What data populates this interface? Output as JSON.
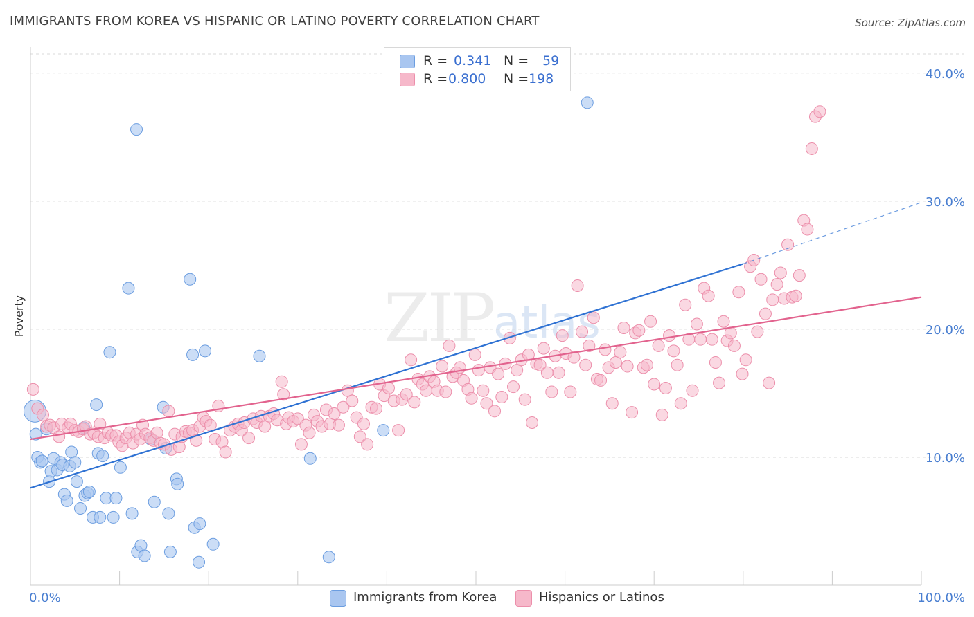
{
  "header": {
    "title": "IMMIGRANTS FROM KOREA VS HISPANIC OR LATINO POVERTY CORRELATION CHART",
    "source": "Source: ZipAtlas.com"
  },
  "watermark": {
    "zip": "ZIP",
    "atlas": "atlas"
  },
  "legend": {
    "korea": {
      "r_label": "R =",
      "r_value": "0.341",
      "n_label": "N =",
      "n_value": "59"
    },
    "hispanic": {
      "r_label": "R =",
      "r_value": "0.800",
      "n_label": "N =",
      "n_value": "198"
    }
  },
  "bottom_legend": {
    "korea": "Immigrants from Korea",
    "hispanic": "Hispanics or Latinos"
  },
  "colors": {
    "korea_fill": "#a9c6f0",
    "korea_stroke": "#6b9de0",
    "korea_line": "#2f72d3",
    "hispanic_fill": "#f6b8ca",
    "hispanic_stroke": "#ec8fab",
    "hispanic_line": "#e2638e",
    "grid": "#d9d9d9",
    "tick_text": "#4a7fd1"
  },
  "chart_data": {
    "type": "scatter",
    "title": "IMMIGRANTS FROM KOREA VS HISPANIC OR LATINO POVERTY CORRELATION CHART",
    "xlabel": "",
    "ylabel": "Poverty",
    "xlim": [
      0,
      100
    ],
    "ylim": [
      0,
      41.5
    ],
    "x_ticks_labels": [
      "0.0%",
      "100.0%"
    ],
    "y_ticks": [
      10,
      20,
      30,
      40
    ],
    "y_ticks_labels": [
      "10.0%",
      "20.0%",
      "30.0%",
      "40.0%"
    ],
    "grid": true,
    "legend_position": "top-center",
    "series": [
      {
        "name": "Immigrants from Korea",
        "r": 0.341,
        "n": 59,
        "trend": {
          "x": [
            0,
            80
          ],
          "y": [
            7.6,
            25.1
          ],
          "dashed_to": [
            100,
            29.9
          ]
        },
        "points": [
          [
            0.5,
            13.6
          ],
          [
            0.6,
            11.8
          ],
          [
            0.8,
            10.0
          ],
          [
            1.1,
            9.6
          ],
          [
            1.3,
            9.7
          ],
          [
            1.8,
            12.2
          ],
          [
            2.1,
            8.1
          ],
          [
            2.3,
            8.9
          ],
          [
            2.6,
            9.9
          ],
          [
            3.0,
            9.0
          ],
          [
            3.4,
            9.6
          ],
          [
            3.6,
            9.4
          ],
          [
            3.8,
            7.1
          ],
          [
            4.1,
            6.6
          ],
          [
            4.4,
            9.3
          ],
          [
            4.6,
            10.4
          ],
          [
            5.0,
            9.6
          ],
          [
            5.2,
            8.1
          ],
          [
            5.6,
            6.0
          ],
          [
            6.0,
            12.3
          ],
          [
            6.1,
            7.0
          ],
          [
            6.4,
            7.2
          ],
          [
            6.6,
            7.3
          ],
          [
            7.0,
            5.3
          ],
          [
            7.4,
            14.1
          ],
          [
            7.6,
            10.3
          ],
          [
            7.8,
            5.3
          ],
          [
            8.1,
            10.1
          ],
          [
            8.5,
            6.8
          ],
          [
            8.9,
            18.2
          ],
          [
            9.3,
            5.3
          ],
          [
            9.6,
            6.8
          ],
          [
            10.1,
            9.2
          ],
          [
            11.0,
            23.2
          ],
          [
            11.4,
            5.6
          ],
          [
            11.9,
            35.6
          ],
          [
            12.0,
            2.6
          ],
          [
            12.4,
            3.1
          ],
          [
            12.8,
            2.3
          ],
          [
            13.5,
            11.4
          ],
          [
            13.9,
            6.5
          ],
          [
            14.9,
            13.9
          ],
          [
            15.2,
            10.7
          ],
          [
            15.5,
            5.6
          ],
          [
            15.7,
            2.6
          ],
          [
            16.4,
            8.3
          ],
          [
            16.5,
            7.9
          ],
          [
            17.9,
            23.9
          ],
          [
            18.2,
            18.0
          ],
          [
            18.4,
            4.5
          ],
          [
            18.9,
            1.8
          ],
          [
            19.0,
            4.8
          ],
          [
            19.6,
            18.3
          ],
          [
            20.5,
            3.2
          ],
          [
            25.7,
            17.9
          ],
          [
            31.4,
            9.9
          ],
          [
            33.5,
            2.2
          ],
          [
            39.6,
            12.1
          ],
          [
            62.5,
            37.7
          ]
        ]
      },
      {
        "name": "Hispanics or Latinos",
        "r": 0.8,
        "n": 198,
        "trend": {
          "x": [
            0,
            100
          ],
          "y": [
            11.4,
            22.5
          ]
        },
        "points": [
          [
            0.3,
            15.3
          ],
          [
            0.8,
            13.8
          ],
          [
            1.4,
            13.3
          ],
          [
            1.8,
            12.4
          ],
          [
            2.2,
            12.5
          ],
          [
            2.6,
            12.3
          ],
          [
            3.2,
            11.6
          ],
          [
            3.5,
            12.6
          ],
          [
            4.2,
            12.3
          ],
          [
            4.5,
            12.6
          ],
          [
            5.0,
            12.1
          ],
          [
            5.4,
            12.0
          ],
          [
            5.9,
            12.2
          ],
          [
            6.2,
            12.4
          ],
          [
            6.7,
            11.8
          ],
          [
            7.1,
            11.9
          ],
          [
            7.6,
            11.6
          ],
          [
            7.8,
            12.6
          ],
          [
            8.3,
            11.5
          ],
          [
            8.7,
            11.9
          ],
          [
            9.1,
            11.7
          ],
          [
            9.6,
            11.7
          ],
          [
            9.9,
            11.2
          ],
          [
            10.3,
            10.9
          ],
          [
            10.7,
            11.5
          ],
          [
            11.1,
            11.9
          ],
          [
            11.5,
            11.1
          ],
          [
            11.9,
            11.8
          ],
          [
            12.3,
            11.4
          ],
          [
            12.6,
            12.5
          ],
          [
            12.9,
            11.8
          ],
          [
            13.4,
            11.5
          ],
          [
            13.8,
            11.3
          ],
          [
            14.2,
            11.9
          ],
          [
            14.6,
            11.1
          ],
          [
            15.0,
            11.0
          ],
          [
            15.5,
            13.6
          ],
          [
            15.8,
            10.6
          ],
          [
            16.2,
            11.8
          ],
          [
            16.7,
            10.8
          ],
          [
            17.0,
            11.6
          ],
          [
            17.4,
            12.0
          ],
          [
            17.8,
            11.9
          ],
          [
            18.2,
            12.1
          ],
          [
            18.6,
            11.3
          ],
          [
            19.0,
            12.4
          ],
          [
            19.4,
            13.1
          ],
          [
            19.7,
            12.8
          ],
          [
            20.2,
            12.5
          ],
          [
            20.7,
            11.4
          ],
          [
            21.1,
            14.0
          ],
          [
            21.5,
            11.2
          ],
          [
            21.9,
            10.4
          ],
          [
            22.4,
            12.1
          ],
          [
            22.9,
            12.4
          ],
          [
            23.3,
            12.6
          ],
          [
            23.7,
            12.1
          ],
          [
            24.0,
            12.7
          ],
          [
            24.5,
            11.5
          ],
          [
            25.0,
            13.0
          ],
          [
            25.4,
            12.7
          ],
          [
            25.9,
            13.2
          ],
          [
            26.3,
            12.4
          ],
          [
            26.8,
            13.2
          ],
          [
            27.3,
            13.4
          ],
          [
            27.7,
            12.9
          ],
          [
            28.2,
            15.9
          ],
          [
            28.4,
            14.9
          ],
          [
            28.7,
            12.6
          ],
          [
            29.0,
            13.1
          ],
          [
            29.5,
            12.8
          ],
          [
            30.0,
            13.0
          ],
          [
            30.4,
            11.0
          ],
          [
            30.9,
            12.5
          ],
          [
            31.3,
            11.9
          ],
          [
            31.8,
            13.3
          ],
          [
            32.2,
            12.8
          ],
          [
            32.7,
            12.4
          ],
          [
            33.2,
            13.7
          ],
          [
            33.6,
            12.6
          ],
          [
            34.1,
            13.4
          ],
          [
            34.6,
            12.5
          ],
          [
            35.1,
            13.9
          ],
          [
            35.6,
            15.2
          ],
          [
            36.1,
            14.4
          ],
          [
            36.6,
            13.1
          ],
          [
            37.0,
            11.6
          ],
          [
            37.4,
            12.6
          ],
          [
            37.8,
            11.0
          ],
          [
            38.3,
            13.9
          ],
          [
            38.8,
            13.8
          ],
          [
            39.2,
            15.7
          ],
          [
            39.7,
            14.8
          ],
          [
            40.2,
            15.4
          ],
          [
            40.8,
            14.4
          ],
          [
            41.3,
            12.1
          ],
          [
            41.7,
            14.5
          ],
          [
            42.2,
            14.9
          ],
          [
            42.7,
            17.6
          ],
          [
            43.1,
            14.3
          ],
          [
            43.5,
            16.1
          ],
          [
            44.0,
            15.7
          ],
          [
            44.4,
            15.2
          ],
          [
            44.8,
            16.3
          ],
          [
            45.3,
            15.9
          ],
          [
            45.7,
            15.2
          ],
          [
            46.2,
            17.1
          ],
          [
            46.6,
            15.1
          ],
          [
            47.0,
            18.7
          ],
          [
            47.4,
            16.3
          ],
          [
            47.8,
            16.6
          ],
          [
            48.2,
            17.0
          ],
          [
            48.6,
            16.0
          ],
          [
            49.1,
            15.3
          ],
          [
            49.5,
            14.6
          ],
          [
            49.9,
            18.0
          ],
          [
            50.3,
            16.8
          ],
          [
            50.8,
            15.2
          ],
          [
            51.2,
            14.2
          ],
          [
            51.6,
            17.0
          ],
          [
            52.1,
            13.6
          ],
          [
            52.5,
            16.5
          ],
          [
            52.9,
            14.7
          ],
          [
            53.3,
            17.3
          ],
          [
            53.8,
            19.3
          ],
          [
            54.2,
            15.5
          ],
          [
            54.6,
            16.8
          ],
          [
            55.1,
            17.6
          ],
          [
            55.5,
            14.5
          ],
          [
            55.9,
            18.0
          ],
          [
            56.3,
            12.7
          ],
          [
            56.8,
            17.3
          ],
          [
            57.2,
            17.2
          ],
          [
            57.6,
            18.5
          ],
          [
            58.0,
            16.6
          ],
          [
            58.5,
            15.1
          ],
          [
            58.9,
            17.9
          ],
          [
            59.3,
            16.6
          ],
          [
            59.7,
            19.5
          ],
          [
            60.1,
            18.1
          ],
          [
            60.6,
            15.1
          ],
          [
            61.0,
            17.8
          ],
          [
            61.4,
            23.4
          ],
          [
            61.9,
            19.8
          ],
          [
            62.3,
            17.2
          ],
          [
            62.7,
            18.7
          ],
          [
            63.2,
            20.9
          ],
          [
            63.6,
            16.1
          ],
          [
            64.0,
            16.0
          ],
          [
            64.5,
            18.4
          ],
          [
            64.9,
            17.0
          ],
          [
            65.3,
            14.2
          ],
          [
            65.7,
            17.4
          ],
          [
            66.2,
            18.2
          ],
          [
            66.6,
            20.1
          ],
          [
            67.0,
            17.1
          ],
          [
            67.5,
            13.5
          ],
          [
            67.9,
            19.7
          ],
          [
            68.3,
            19.9
          ],
          [
            68.8,
            17.0
          ],
          [
            69.2,
            17.2
          ],
          [
            69.6,
            20.6
          ],
          [
            70.0,
            15.7
          ],
          [
            70.5,
            18.7
          ],
          [
            70.9,
            13.3
          ],
          [
            71.3,
            15.4
          ],
          [
            71.7,
            19.5
          ],
          [
            72.2,
            18.3
          ],
          [
            72.6,
            17.2
          ],
          [
            73.0,
            14.2
          ],
          [
            73.5,
            21.9
          ],
          [
            73.9,
            19.2
          ],
          [
            74.3,
            15.2
          ],
          [
            74.8,
            20.4
          ],
          [
            75.2,
            19.2
          ],
          [
            75.6,
            23.2
          ],
          [
            76.1,
            22.6
          ],
          [
            76.5,
            19.2
          ],
          [
            76.9,
            17.4
          ],
          [
            77.3,
            15.8
          ],
          [
            77.8,
            20.6
          ],
          [
            78.2,
            19.1
          ],
          [
            78.6,
            19.7
          ],
          [
            79.0,
            18.7
          ],
          [
            79.5,
            22.9
          ],
          [
            79.9,
            16.5
          ],
          [
            80.3,
            17.6
          ],
          [
            80.8,
            24.9
          ],
          [
            81.2,
            25.4
          ],
          [
            81.6,
            19.8
          ],
          [
            82.0,
            23.9
          ],
          [
            82.5,
            21.2
          ],
          [
            82.9,
            15.8
          ],
          [
            83.3,
            22.3
          ],
          [
            83.8,
            23.5
          ],
          [
            84.2,
            24.4
          ],
          [
            84.6,
            22.4
          ],
          [
            85.0,
            26.6
          ],
          [
            85.5,
            22.5
          ],
          [
            85.9,
            22.6
          ],
          [
            86.3,
            24.2
          ],
          [
            86.8,
            28.5
          ],
          [
            87.2,
            27.8
          ],
          [
            87.7,
            34.1
          ],
          [
            88.1,
            36.6
          ],
          [
            88.6,
            37.0
          ]
        ]
      }
    ]
  }
}
